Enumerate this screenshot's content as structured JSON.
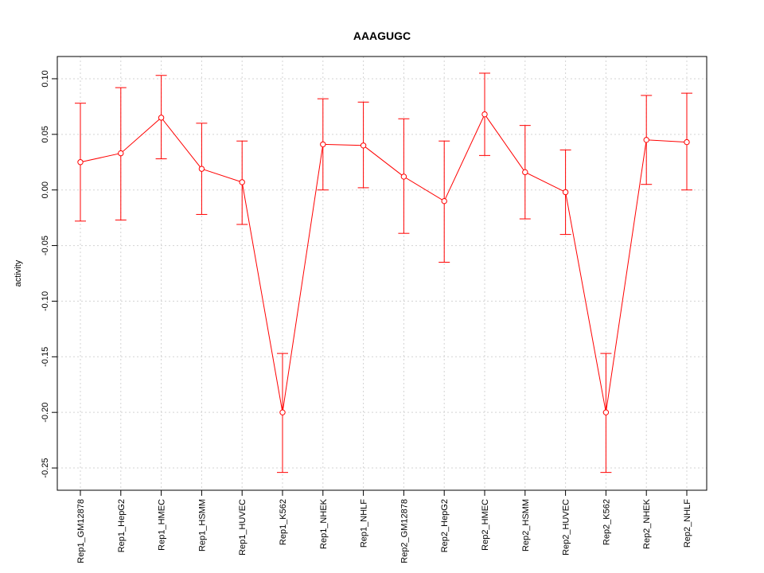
{
  "chart_data": {
    "type": "line",
    "title": "AAAGUGC",
    "xlabel": "",
    "ylabel": "activity",
    "ylim": [
      -0.27,
      0.12
    ],
    "yticks": [
      -0.25,
      -0.2,
      -0.15,
      -0.1,
      -0.05,
      0.0,
      0.05,
      0.1
    ],
    "ytick_labels": [
      "-0.25",
      "-0.20",
      "-0.15",
      "-0.10",
      "-0.05",
      "0.00",
      "0.05",
      "0.10"
    ],
    "grid": true,
    "color": "#ff0000",
    "categories": [
      "Rep1_GM12878",
      "Rep1_HepG2",
      "Rep1_HMEC",
      "Rep1_HSMM",
      "Rep1_HUVEC",
      "Rep1_K562",
      "Rep1_NHEK",
      "Rep1_NHLF",
      "Rep2_GM12878",
      "Rep2_HepG2",
      "Rep2_HMEC",
      "Rep2_HSMM",
      "Rep2_HUVEC",
      "Rep2_K562",
      "Rep2_NHEK",
      "Rep2_NHLF"
    ],
    "values": [
      0.025,
      0.033,
      0.065,
      0.019,
      0.007,
      -0.2,
      0.041,
      0.04,
      0.012,
      -0.01,
      0.068,
      0.016,
      -0.002,
      -0.2,
      0.045,
      0.043
    ],
    "error_lower": [
      -0.028,
      -0.027,
      0.028,
      -0.022,
      -0.031,
      -0.254,
      0.0,
      0.002,
      -0.039,
      -0.065,
      0.031,
      -0.026,
      -0.04,
      -0.254,
      0.005,
      0.0
    ],
    "error_upper": [
      0.078,
      0.092,
      0.103,
      0.06,
      0.044,
      -0.147,
      0.082,
      0.079,
      0.064,
      0.044,
      0.105,
      0.058,
      0.036,
      -0.147,
      0.085,
      0.087
    ]
  }
}
